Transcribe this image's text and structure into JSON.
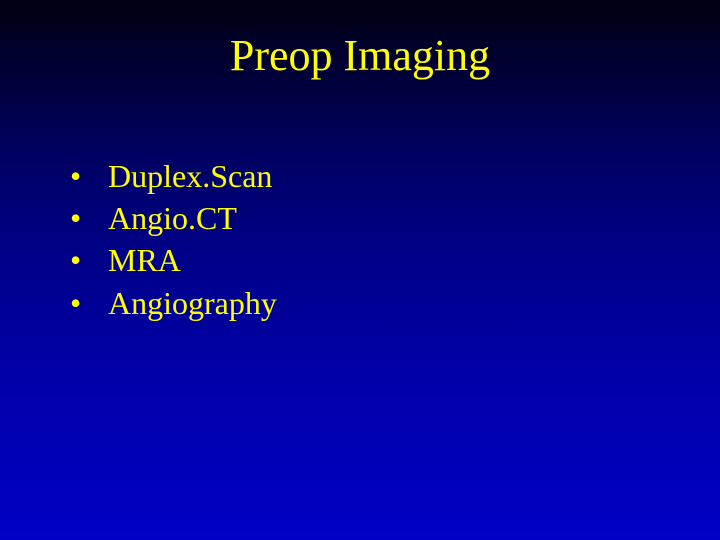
{
  "slide": {
    "title": "Preop Imaging",
    "title_color": "#ffff00",
    "title_fontsize": 44,
    "body_color": "#ffff00",
    "body_fontsize": 32,
    "background_gradient_top": "#000010",
    "background_gradient_bottom": "#0000c8",
    "bullets": [
      {
        "marker": "•",
        "text": "Duplex.Scan"
      },
      {
        "marker": "•",
        "text": "Angio.CT"
      },
      {
        "marker": "•",
        "text": "MRA"
      },
      {
        "marker": "•",
        "text": "Angiography"
      }
    ]
  }
}
